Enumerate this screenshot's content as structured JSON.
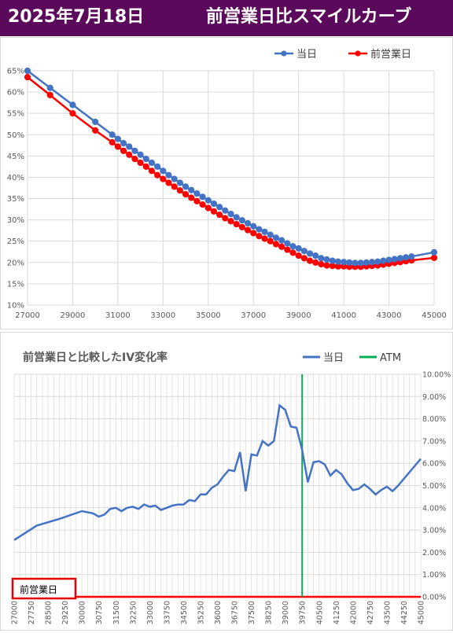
{
  "header": {
    "date": "2025年7月18日",
    "title": "前営業日比スマイルカーブ",
    "bg_color": "#5b0a5b"
  },
  "chart_data": [
    {
      "type": "line",
      "title": "",
      "xlim": [
        27000,
        45000
      ],
      "ylim": [
        10,
        65
      ],
      "x_ticks": [
        "27000",
        "29000",
        "31000",
        "33000",
        "35000",
        "37000",
        "39000",
        "41000",
        "43000",
        "45000"
      ],
      "y_ticks": [
        "10%",
        "15%",
        "20%",
        "25%",
        "30%",
        "35%",
        "40%",
        "45%",
        "50%",
        "55%",
        "60%",
        "65%"
      ],
      "legend_position": "top-right",
      "grid": true,
      "series": [
        {
          "name": "当日",
          "color": "#4472c4",
          "x": [
            27000,
            28000,
            29000,
            30000,
            30750,
            31000,
            31250,
            31500,
            31750,
            32000,
            32250,
            32500,
            32750,
            33000,
            33250,
            33500,
            33750,
            34000,
            34250,
            34500,
            34750,
            35000,
            35250,
            35500,
            35750,
            36000,
            36250,
            36500,
            36750,
            37000,
            37250,
            37500,
            37750,
            38000,
            38250,
            38500,
            38750,
            39000,
            39250,
            39500,
            39750,
            40000,
            40250,
            40500,
            40750,
            41000,
            41250,
            41500,
            41750,
            42000,
            42250,
            42500,
            42750,
            43000,
            43250,
            43500,
            43750,
            44000,
            45000
          ],
          "values": [
            65.0,
            61.0,
            57.0,
            53.0,
            50.0,
            49.0,
            48.0,
            47.2,
            46.2,
            45.3,
            44.3,
            43.4,
            42.5,
            41.5,
            40.5,
            39.6,
            38.7,
            37.8,
            37.0,
            36.2,
            35.4,
            34.6,
            33.8,
            33.0,
            32.2,
            31.4,
            30.6,
            29.9,
            29.2,
            28.5,
            27.8,
            27.2,
            26.5,
            25.8,
            25.2,
            24.5,
            23.8,
            23.3,
            22.7,
            22.1,
            21.6,
            21.0,
            20.7,
            20.4,
            20.2,
            20.1,
            20.0,
            19.9,
            19.9,
            20.0,
            20.1,
            20.2,
            20.4,
            20.6,
            20.8,
            21.0,
            21.2,
            21.4,
            22.4
          ]
        },
        {
          "name": "前営業日",
          "color": "#ff0000",
          "x": [
            27000,
            28000,
            29000,
            30000,
            30750,
            31000,
            31250,
            31500,
            31750,
            32000,
            32250,
            32500,
            32750,
            33000,
            33250,
            33500,
            33750,
            34000,
            34250,
            34500,
            34750,
            35000,
            35250,
            35500,
            35750,
            36000,
            36250,
            36500,
            36750,
            37000,
            37250,
            37500,
            37750,
            38000,
            38250,
            38500,
            38750,
            39000,
            39250,
            39500,
            39750,
            40000,
            40250,
            40500,
            40750,
            41000,
            41250,
            41500,
            41750,
            42000,
            42250,
            42500,
            42750,
            43000,
            43250,
            43500,
            43750,
            44000,
            45000
          ],
          "values": [
            63.5,
            59.3,
            55.0,
            51.0,
            48.2,
            47.2,
            46.2,
            45.3,
            44.3,
            43.4,
            42.5,
            41.5,
            40.5,
            39.6,
            38.7,
            37.8,
            36.9,
            36.0,
            35.2,
            34.4,
            33.6,
            32.8,
            32.0,
            31.2,
            30.4,
            29.7,
            29.0,
            28.3,
            27.6,
            26.9,
            26.2,
            25.6,
            25.0,
            24.3,
            23.7,
            23.0,
            22.3,
            21.6,
            21.0,
            20.4,
            20.0,
            19.6,
            19.3,
            19.2,
            19.1,
            19.1,
            19.0,
            19.0,
            19.0,
            19.1,
            19.2,
            19.3,
            19.5,
            19.7,
            19.9,
            20.1,
            20.3,
            20.5,
            21.1
          ]
        }
      ]
    },
    {
      "type": "line",
      "title": "前営業日と比較したIV変化率",
      "ylim": [
        0,
        10
      ],
      "x_ticks": [
        "27000",
        "27750",
        "28500",
        "29250",
        "30000",
        "30750",
        "31500",
        "32250",
        "33000",
        "33750",
        "34500",
        "35250",
        "36000",
        "36750",
        "37500",
        "38250",
        "39000",
        "39750",
        "40500",
        "41250",
        "42000",
        "42750",
        "43500",
        "44250",
        "45000"
      ],
      "y_ticks": [
        "0.00%",
        "1.00%",
        "2.00%",
        "3.00%",
        "4.00%",
        "5.00%",
        "6.00%",
        "7.00%",
        "8.00%",
        "9.00%",
        "10.00%"
      ],
      "legend_position": "top-right",
      "grid": true,
      "atm": 39750,
      "baseline_label": "前営業日",
      "series": [
        {
          "name": "当日",
          "color": "#4472c4",
          "x": [
            27000,
            28000,
            29000,
            30000,
            30500,
            30750,
            31000,
            31250,
            31500,
            31750,
            32000,
            32250,
            32500,
            32750,
            33000,
            33250,
            33500,
            33750,
            34000,
            34250,
            34500,
            34750,
            35000,
            35250,
            35500,
            35750,
            36000,
            36250,
            36500,
            36750,
            37000,
            37250,
            37500,
            37750,
            38000,
            38250,
            38500,
            38750,
            39000,
            39250,
            39500,
            39750,
            40000,
            40250,
            40500,
            40750,
            41000,
            41250,
            41500,
            41750,
            42000,
            42250,
            42500,
            42750,
            43000,
            43250,
            43500,
            43750,
            44000,
            45000
          ],
          "values": [
            2.55,
            3.2,
            3.5,
            3.85,
            3.75,
            3.6,
            3.7,
            3.95,
            4.0,
            3.85,
            4.0,
            4.05,
            3.95,
            4.15,
            4.05,
            4.1,
            3.9,
            4.0,
            4.1,
            4.15,
            4.15,
            4.35,
            4.3,
            4.6,
            4.6,
            4.9,
            5.05,
            5.4,
            5.7,
            5.65,
            6.5,
            4.75,
            6.4,
            6.35,
            7.0,
            6.8,
            7.0,
            8.6,
            8.4,
            7.65,
            7.6,
            6.6,
            5.15,
            6.05,
            6.1,
            5.95,
            5.45,
            5.7,
            5.5,
            5.1,
            4.8,
            4.85,
            5.05,
            4.85,
            4.6,
            4.8,
            4.95,
            4.75,
            5.0,
            6.2
          ]
        },
        {
          "name": "ATM",
          "color": "#00b050"
        },
        {
          "name": "前営業日",
          "color": "#ff0000"
        }
      ]
    }
  ]
}
